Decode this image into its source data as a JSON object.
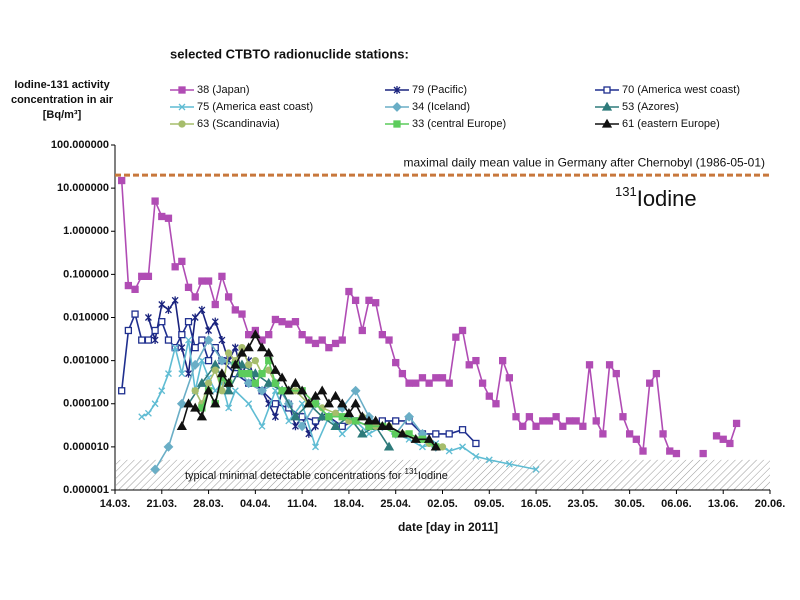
{
  "chart_data": {
    "type": "line",
    "title": "selected CTBTO radionuclide stations:",
    "y_label": [
      "Iodine-131 activity",
      "concentration in air",
      "[Bq/m³]"
    ],
    "x_label": "date  [day in 2011]",
    "log_y": true,
    "grid": false,
    "ylim": [
      1e-06,
      100
    ],
    "yticks": [
      {
        "value": 100,
        "label": "100.000000"
      },
      {
        "value": 10,
        "label": "10.000000"
      },
      {
        "value": 1,
        "label": "1.000000"
      },
      {
        "value": 0.1,
        "label": "0.100000"
      },
      {
        "value": 0.01,
        "label": "0.010000"
      },
      {
        "value": 0.001,
        "label": "0.001000"
      },
      {
        "value": 0.0001,
        "label": "0.000100"
      },
      {
        "value": 1e-05,
        "label": "0.000010"
      },
      {
        "value": 1e-06,
        "label": "0.000001"
      }
    ],
    "xlim": [
      "14.03.",
      "20.06."
    ],
    "xticks": [
      "14.03.",
      "21.03.",
      "28.03.",
      "04.04.",
      "11.04.",
      "18.04.",
      "25.04.",
      "02.05.",
      "09.05.",
      "16.05.",
      "23.05.",
      "30.05.",
      "06.06.",
      "13.06.",
      "20.06."
    ],
    "reference_line": {
      "value": 20,
      "color": "#c8783c",
      "label": "maximal daily mean value in Germany after Chernobyl (1986-05-01)"
    },
    "annotation": {
      "sup": "131",
      "text": "Iodine"
    },
    "detection_band": {
      "upper": 5e-06,
      "label": "typical minimal detectable concentrations for ",
      "sup": "131",
      "label_end": "Iodine"
    },
    "series": [
      {
        "name": "38 (Japan)",
        "color": "#b04cb4",
        "marker": "square",
        "x": [
          "15.03.",
          "16.03.",
          "17.03.",
          "18.03.",
          "19.03.",
          "20.03.",
          "21.03.",
          "22.03.",
          "23.03.",
          "24.03.",
          "25.03.",
          "26.03.",
          "27.03.",
          "28.03.",
          "29.03.",
          "30.03.",
          "31.03.",
          "01.04.",
          "02.04.",
          "03.04.",
          "04.04.",
          "05.04.",
          "06.04.",
          "07.04.",
          "08.04.",
          "09.04.",
          "10.04.",
          "11.04.",
          "12.04.",
          "13.04.",
          "14.04.",
          "15.04.",
          "16.04.",
          "17.04.",
          "18.04.",
          "19.04.",
          "20.04.",
          "21.04.",
          "22.04.",
          "23.04.",
          "24.04.",
          "25.04.",
          "26.04.",
          "27.04.",
          "28.04.",
          "29.04.",
          "30.04.",
          "01.05.",
          "02.05.",
          "03.05.",
          "04.05.",
          "05.05.",
          "06.05.",
          "07.05.",
          "08.05.",
          "09.05.",
          "10.05.",
          "11.05.",
          "12.05.",
          "13.05.",
          "14.05.",
          "15.05.",
          "16.05.",
          "17.05.",
          "18.05.",
          "19.05.",
          "20.05.",
          "21.05.",
          "22.05.",
          "23.05.",
          "24.05.",
          "25.05.",
          "26.05.",
          "27.05.",
          "28.05.",
          "29.05.",
          "30.05.",
          "31.05.",
          "01.06.",
          "02.06.",
          "03.06.",
          "04.06.",
          "05.06.",
          "06.06.",
          "08.06.",
          "10.06.",
          "11.06.",
          "12.06.",
          "13.06.",
          "14.06.",
          "15.06."
        ],
        "values": [
          15,
          0.055,
          0.045,
          0.09,
          0.09,
          5,
          2.2,
          2,
          0.15,
          0.2,
          0.05,
          0.03,
          0.07,
          0.07,
          0.02,
          0.09,
          0.03,
          0.015,
          0.012,
          0.004,
          0.005,
          0.003,
          0.004,
          0.009,
          0.008,
          0.007,
          0.008,
          0.004,
          0.003,
          0.0025,
          0.003,
          0.002,
          0.0025,
          0.003,
          0.04,
          0.025,
          0.005,
          0.025,
          0.022,
          0.004,
          0.003,
          0.0009,
          0.0005,
          0.0003,
          0.0003,
          0.0004,
          0.0003,
          0.0004,
          0.0004,
          0.0003,
          0.0035,
          0.005,
          0.0008,
          0.001,
          0.0003,
          0.00015,
          0.0001,
          0.001,
          0.0004,
          5e-05,
          3e-05,
          5e-05,
          3e-05,
          4e-05,
          4e-05,
          5e-05,
          3e-05,
          4e-05,
          4e-05,
          3e-05,
          0.0008,
          4e-05,
          2e-05,
          0.0008,
          0.0005,
          5e-05,
          2e-05,
          1.5e-05,
          8e-06,
          0.0003,
          0.0005,
          2e-05,
          8e-06,
          7e-06,
          null,
          7e-06,
          null,
          1.8e-05,
          1.5e-05,
          1.2e-05,
          3.5e-05
        ]
      },
      {
        "name": "79 (Pacific)",
        "color": "#1a237e",
        "marker": "star",
        "x": [
          "19.03.",
          "20.03.",
          "21.03.",
          "22.03.",
          "23.03.",
          "24.03.",
          "25.03.",
          "26.03.",
          "27.03.",
          "28.03.",
          "29.03.",
          "30.03.",
          "31.03.",
          "01.04.",
          "02.04.",
          "03.04.",
          "04.04.",
          "05.04.",
          "06.04.",
          "07.04.",
          "08.04.",
          "09.04.",
          "10.04.",
          "11.04.",
          "12.04.",
          "13.04.",
          "14.04."
        ],
        "values": [
          0.01,
          0.003,
          0.02,
          0.015,
          0.025,
          0.002,
          0.0005,
          0.01,
          0.015,
          0.005,
          0.008,
          0.003,
          0.001,
          0.002,
          0.0005,
          0.001,
          0.0003,
          0.0002,
          0.0001,
          5e-05,
          0.0002,
          0.0001,
          3e-05,
          5e-05,
          2e-05,
          3e-05,
          5e-05
        ]
      },
      {
        "name": "70 (America west coast)",
        "color": "#1f2f8f",
        "marker": "open-square",
        "x": [
          "15.03.",
          "16.03.",
          "17.03.",
          "18.03.",
          "19.03.",
          "20.03.",
          "21.03.",
          "22.03.",
          "23.03.",
          "24.03.",
          "25.03.",
          "26.03.",
          "27.03.",
          "28.03.",
          "29.03.",
          "30.03.",
          "01.04.",
          "03.04.",
          "05.04.",
          "07.04.",
          "09.04.",
          "11.04.",
          "13.04.",
          "15.04.",
          "17.04.",
          "19.04.",
          "21.04.",
          "23.04.",
          "25.04.",
          "27.04.",
          "29.04.",
          "01.05.",
          "03.05.",
          "05.05.",
          "07.05."
        ],
        "values": [
          0.0002,
          0.005,
          0.012,
          0.003,
          0.003,
          0.005,
          0.008,
          0.003,
          0.002,
          0.004,
          0.008,
          0.002,
          0.003,
          0.001,
          0.002,
          0.001,
          0.0005,
          0.0003,
          0.0002,
          0.0001,
          8e-05,
          5e-05,
          4e-05,
          5e-05,
          3e-05,
          4e-05,
          3e-05,
          4e-05,
          4e-05,
          4e-05,
          2e-05,
          2e-05,
          2e-05,
          2.5e-05,
          1.2e-05
        ]
      },
      {
        "name": "75 (America east coast)",
        "color": "#5fbcd3",
        "marker": "x",
        "x": [
          "18.03.",
          "19.03.",
          "20.03.",
          "21.03.",
          "22.03.",
          "23.03.",
          "24.03.",
          "25.03.",
          "26.03.",
          "27.03.",
          "28.03.",
          "29.03.",
          "30.03.",
          "31.03.",
          "01.04.",
          "03.04.",
          "05.04.",
          "07.04.",
          "09.04.",
          "11.04.",
          "13.04.",
          "15.04.",
          "17.04.",
          "19.04.",
          "21.04.",
          "23.04.",
          "25.04.",
          "27.04.",
          "29.04.",
          "01.05.",
          "03.05.",
          "05.05.",
          "07.05.",
          "09.05.",
          "12.05.",
          "16.05."
        ],
        "values": [
          5e-05,
          6e-05,
          0.0001,
          0.0002,
          0.0005,
          0.002,
          0.0005,
          0.003,
          0.0002,
          0.001,
          0.0004,
          0.0002,
          0.0003,
          8e-05,
          0.0002,
          0.0001,
          3e-05,
          0.0002,
          4e-05,
          0.0001,
          1e-05,
          5e-05,
          2e-05,
          4e-05,
          2e-05,
          3e-05,
          2e-05,
          1.5e-05,
          1e-05,
          1.2e-05,
          8e-06,
          1e-05,
          6e-06,
          5e-06,
          4e-06,
          3e-06
        ]
      },
      {
        "name": "34 (Iceland)",
        "color": "#6aaec6",
        "marker": "diamond",
        "x": [
          "20.03.",
          "22.03.",
          "24.03.",
          "26.03.",
          "28.03.",
          "30.03.",
          "01.04.",
          "03.04.",
          "05.04.",
          "07.04.",
          "09.04.",
          "11.04.",
          "13.04.",
          "15.04.",
          "17.04.",
          "19.04.",
          "21.04.",
          "23.04.",
          "25.04.",
          "27.04.",
          "29.04.",
          "01.05."
        ],
        "values": [
          3e-06,
          1e-05,
          0.0001,
          0.0008,
          0.003,
          0.001,
          0.0008,
          0.0003,
          0.0002,
          0.0003,
          0.0001,
          3e-05,
          0.0001,
          5e-05,
          8e-05,
          0.0002,
          5e-05,
          3e-05,
          2e-05,
          5e-05,
          2e-05,
          1e-05
        ]
      },
      {
        "name": "53 (Azores)",
        "color": "#2e7b7b",
        "marker": "triangle",
        "x": [
          "25.03.",
          "27.03.",
          "29.03.",
          "31.03.",
          "02.04.",
          "04.04.",
          "06.04.",
          "08.04.",
          "10.04.",
          "12.04.",
          "14.04.",
          "16.04.",
          "18.04.",
          "20.04.",
          "22.04.",
          "24.04."
        ],
        "values": [
          0.0001,
          0.0003,
          0.0008,
          0.0002,
          0.0008,
          0.0005,
          0.0003,
          0.0002,
          5e-05,
          0.0001,
          5e-05,
          3e-05,
          5e-05,
          2e-05,
          3e-05,
          1e-05
        ]
      },
      {
        "name": "63 (Scandinavia)",
        "color": "#a6bd6c",
        "marker": "circle",
        "x": [
          "26.03.",
          "27.03.",
          "28.03.",
          "29.03.",
          "30.03.",
          "31.03.",
          "01.04.",
          "02.04.",
          "03.04.",
          "04.04.",
          "05.04.",
          "06.04.",
          "07.04.",
          "08.04.",
          "10.04.",
          "12.04.",
          "14.04.",
          "16.04.",
          "18.04.",
          "20.04.",
          "22.04.",
          "24.04.",
          "26.04.",
          "28.04.",
          "30.04.",
          "02.05."
        ],
        "values": [
          0.0002,
          0.0001,
          0.0003,
          0.0006,
          0.0002,
          0.0015,
          0.001,
          0.002,
          0.0008,
          0.001,
          0.0005,
          0.0006,
          0.0003,
          0.0002,
          0.0002,
          0.0001,
          8e-05,
          6e-05,
          4e-05,
          5e-05,
          3e-05,
          3e-05,
          2e-05,
          1.5e-05,
          1.2e-05,
          1e-05
        ]
      },
      {
        "name": "33 (central Europe)",
        "color": "#5ccc5c",
        "marker": "square",
        "x": [
          "27.03.",
          "28.03.",
          "29.03.",
          "30.03.",
          "31.03.",
          "01.04.",
          "02.04.",
          "03.04.",
          "04.04.",
          "05.04.",
          "06.04.",
          "07.04.",
          "08.04.",
          "09.04.",
          "11.04.",
          "13.04.",
          "15.04.",
          "17.04.",
          "19.04.",
          "21.04.",
          "23.04.",
          "25.04.",
          "27.04.",
          "29.04.",
          "01.05."
        ],
        "values": [
          8e-05,
          0.0002,
          0.0001,
          0.0004,
          0.0003,
          0.0008,
          0.0005,
          0.0005,
          0.0003,
          0.0005,
          0.001,
          0.0003,
          0.0002,
          0.0002,
          0.0002,
          0.0001,
          5e-05,
          5e-05,
          4e-05,
          3e-05,
          3e-05,
          2e-05,
          2e-05,
          1.5e-05,
          1e-05
        ]
      },
      {
        "name": "61 (eastern Europe)",
        "color": "#111111",
        "marker": "triangle",
        "x": [
          "24.03.",
          "25.03.",
          "26.03.",
          "27.03.",
          "28.03.",
          "29.03.",
          "30.03.",
          "31.03.",
          "01.04.",
          "02.04.",
          "03.04.",
          "04.04.",
          "05.04.",
          "06.04.",
          "07.04.",
          "08.04.",
          "09.04.",
          "10.04.",
          "11.04.",
          "12.04.",
          "13.04.",
          "14.04.",
          "15.04.",
          "16.04.",
          "17.04.",
          "18.04.",
          "19.04.",
          "20.04.",
          "21.04.",
          "22.04.",
          "23.04.",
          "24.04.",
          "26.04.",
          "28.04.",
          "30.04.",
          "01.05."
        ],
        "values": [
          3e-05,
          0.0001,
          8e-05,
          5e-05,
          0.0002,
          0.0001,
          0.0005,
          0.0003,
          0.0008,
          0.0015,
          0.002,
          0.004,
          0.002,
          0.0015,
          0.0006,
          0.0004,
          0.0002,
          0.0003,
          0.0002,
          0.0001,
          0.00015,
          0.0002,
          0.0001,
          0.00015,
          0.0001,
          6e-05,
          0.0001,
          5e-05,
          4e-05,
          4e-05,
          3e-05,
          3e-05,
          2e-05,
          1.5e-05,
          1.5e-05,
          1e-05
        ]
      }
    ]
  }
}
